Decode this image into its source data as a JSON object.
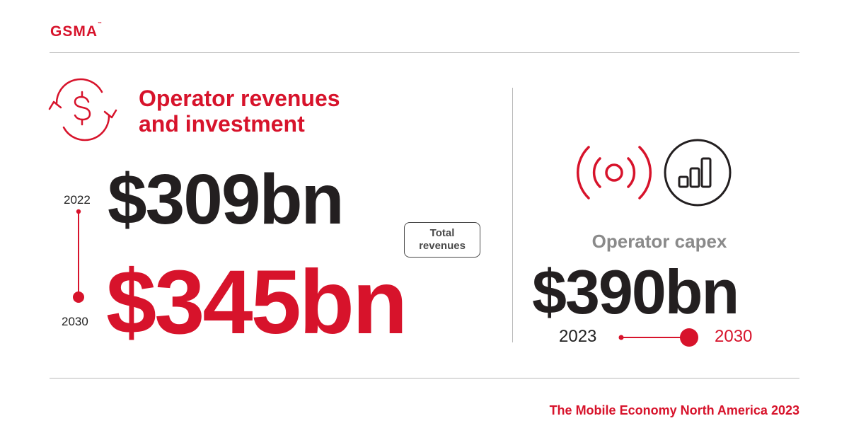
{
  "brand": {
    "logo_text": "GSMA",
    "trademark": "™"
  },
  "revenues": {
    "title_line1": "Operator revenues",
    "title_line2": "and investment",
    "year_start": "2022",
    "year_end": "2030",
    "value_start": "$309bn",
    "value_end": "$345bn",
    "badge_line1": "Total",
    "badge_line2": "revenues",
    "icon": "dollar-cycle-icon"
  },
  "capex": {
    "label": "Operator capex",
    "value": "$390bn",
    "year_start": "2023",
    "year_end": "2030",
    "icons": [
      "signal-broadcast-icon",
      "signal-bars-icon"
    ]
  },
  "footer": {
    "text": "The Mobile Economy North America 2023"
  },
  "colors": {
    "accent": "#d7132b",
    "dark": "#231f20",
    "grey": "#8a8a8a",
    "rule": "#b8b8b8"
  }
}
